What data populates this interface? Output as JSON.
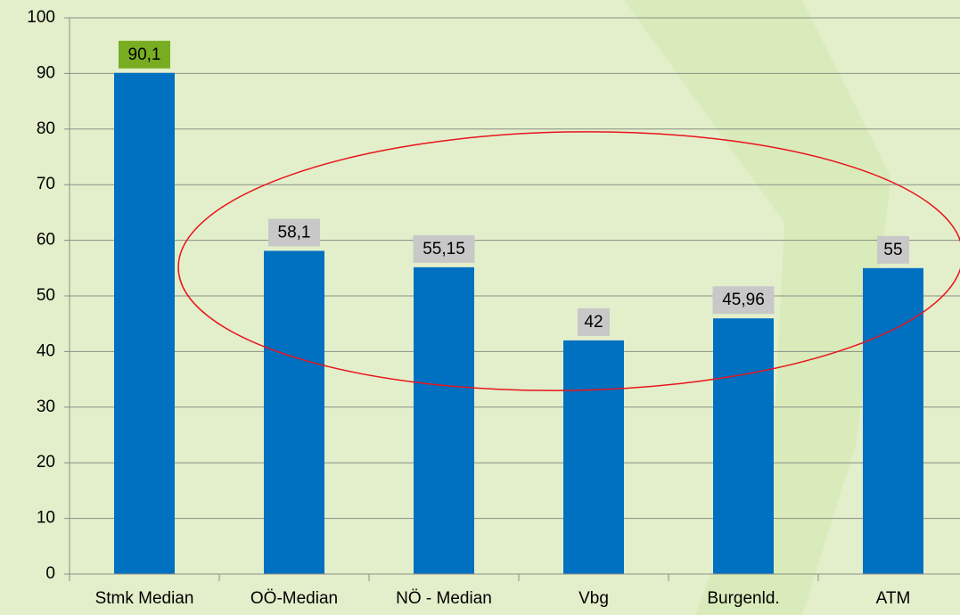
{
  "chart_data": {
    "type": "bar",
    "categories": [
      "Stmk Median",
      "OÖ-Median",
      "NÖ - Median",
      "Vbg",
      "Burgenld.",
      "ATM"
    ],
    "values": [
      90.1,
      58.1,
      55.15,
      42,
      45.96,
      55
    ],
    "value_labels": [
      "90,1",
      "58,1",
      "55,15",
      "42",
      "45,96",
      "55"
    ],
    "value_label_colors": [
      "#78ad22",
      "#c8c8c8",
      "#c8c8c8",
      "#c8c8c8",
      "#c8c8c8",
      "#c8c8c8"
    ],
    "color": "#0070c0",
    "ylim": [
      0,
      100
    ],
    "yticks": [
      0,
      10,
      20,
      30,
      40,
      50,
      60,
      70,
      80,
      90,
      100
    ],
    "grid": true
  }
}
